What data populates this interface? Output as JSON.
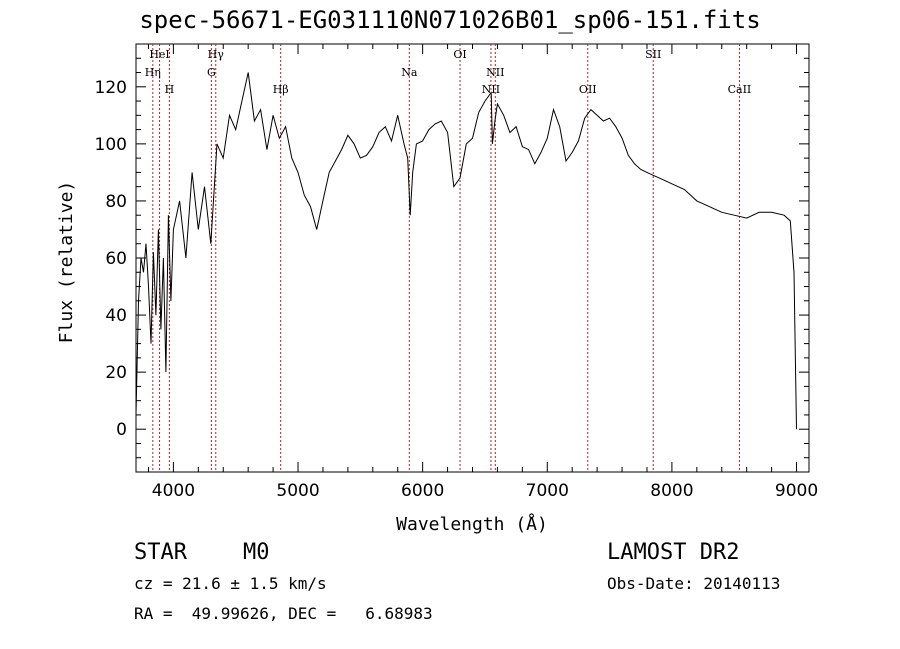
{
  "chart_data": {
    "type": "line",
    "title": "spec-56671-EG031110N071026B01_sp06-151.fits",
    "xlabel": "Wavelength (Å)",
    "ylabel": "Flux (relative)",
    "xlim": [
      3700,
      9100
    ],
    "ylim": [
      -15,
      135
    ],
    "x_ticks": [
      4000,
      5000,
      6000,
      7000,
      8000,
      9000
    ],
    "y_ticks": [
      0,
      20,
      40,
      60,
      80,
      100,
      120
    ],
    "grid": false,
    "series": [
      {
        "x": [
          3700,
          3720,
          3740,
          3760,
          3780,
          3800,
          3820,
          3840,
          3860,
          3880,
          3900,
          3920,
          3940,
          3960,
          3980,
          4000,
          4050,
          4100,
          4150,
          4200,
          4250,
          4300,
          4350,
          4400,
          4450,
          4500,
          4550,
          4600,
          4650,
          4700,
          4750,
          4800,
          4850,
          4900,
          4950,
          5000,
          5050,
          5100,
          5150,
          5200,
          5250,
          5300,
          5350,
          5400,
          5450,
          5500,
          5550,
          5600,
          5650,
          5700,
          5750,
          5800,
          5850,
          5880,
          5900,
          5920,
          5950,
          6000,
          6050,
          6100,
          6150,
          6200,
          6250,
          6300,
          6350,
          6400,
          6450,
          6500,
          6550,
          6560,
          6580,
          6600,
          6650,
          6700,
          6750,
          6800,
          6850,
          6900,
          6950,
          7000,
          7050,
          7100,
          7150,
          7200,
          7250,
          7300,
          7350,
          7400,
          7450,
          7500,
          7550,
          7600,
          7650,
          7700,
          7750,
          7800,
          7850,
          7900,
          8000,
          8100,
          8200,
          8300,
          8400,
          8500,
          8600,
          8700,
          8800,
          8900,
          8950,
          8980,
          9000
        ],
        "values": [
          5,
          45,
          60,
          55,
          65,
          50,
          30,
          62,
          40,
          70,
          35,
          60,
          20,
          75,
          45,
          70,
          80,
          60,
          90,
          70,
          85,
          65,
          100,
          95,
          110,
          105,
          115,
          125,
          108,
          112,
          98,
          110,
          102,
          106,
          95,
          90,
          82,
          78,
          70,
          80,
          90,
          94,
          98,
          103,
          100,
          95,
          96,
          99,
          104,
          106,
          101,
          110,
          100,
          95,
          75,
          90,
          100,
          101,
          105,
          107,
          108,
          104,
          85,
          88,
          100,
          102,
          111,
          115,
          118,
          100,
          108,
          114,
          110,
          104,
          106,
          99,
          98,
          93,
          97,
          102,
          112,
          106,
          94,
          97,
          101,
          109,
          112,
          110,
          108,
          109,
          106,
          102,
          96,
          93,
          91,
          90,
          89,
          88,
          86,
          84,
          80,
          78,
          76,
          75,
          74,
          76,
          76,
          75,
          73,
          55,
          0
        ]
      }
    ],
    "annotations": [
      "HeI",
      "Hη",
      "H",
      "Hγ",
      "G",
      "Hβ",
      "Na",
      "OI",
      "NII",
      "NII",
      "OII",
      "SII",
      "CaII"
    ],
    "annotation_x": [
      3889,
      3835,
      3968,
      4340,
      4305,
      4861,
      5893,
      6300,
      6548,
      6583,
      7325,
      7850,
      8542
    ]
  },
  "footer": {
    "class_label": "STAR",
    "subclass": "M0",
    "survey": "LAMOST DR2",
    "cz": "cz = 21.6 ± 1.5 km/s",
    "obs_date": "Obs-Date: 20140113",
    "coords": "RA =  49.99626, DEC =   6.68983"
  }
}
